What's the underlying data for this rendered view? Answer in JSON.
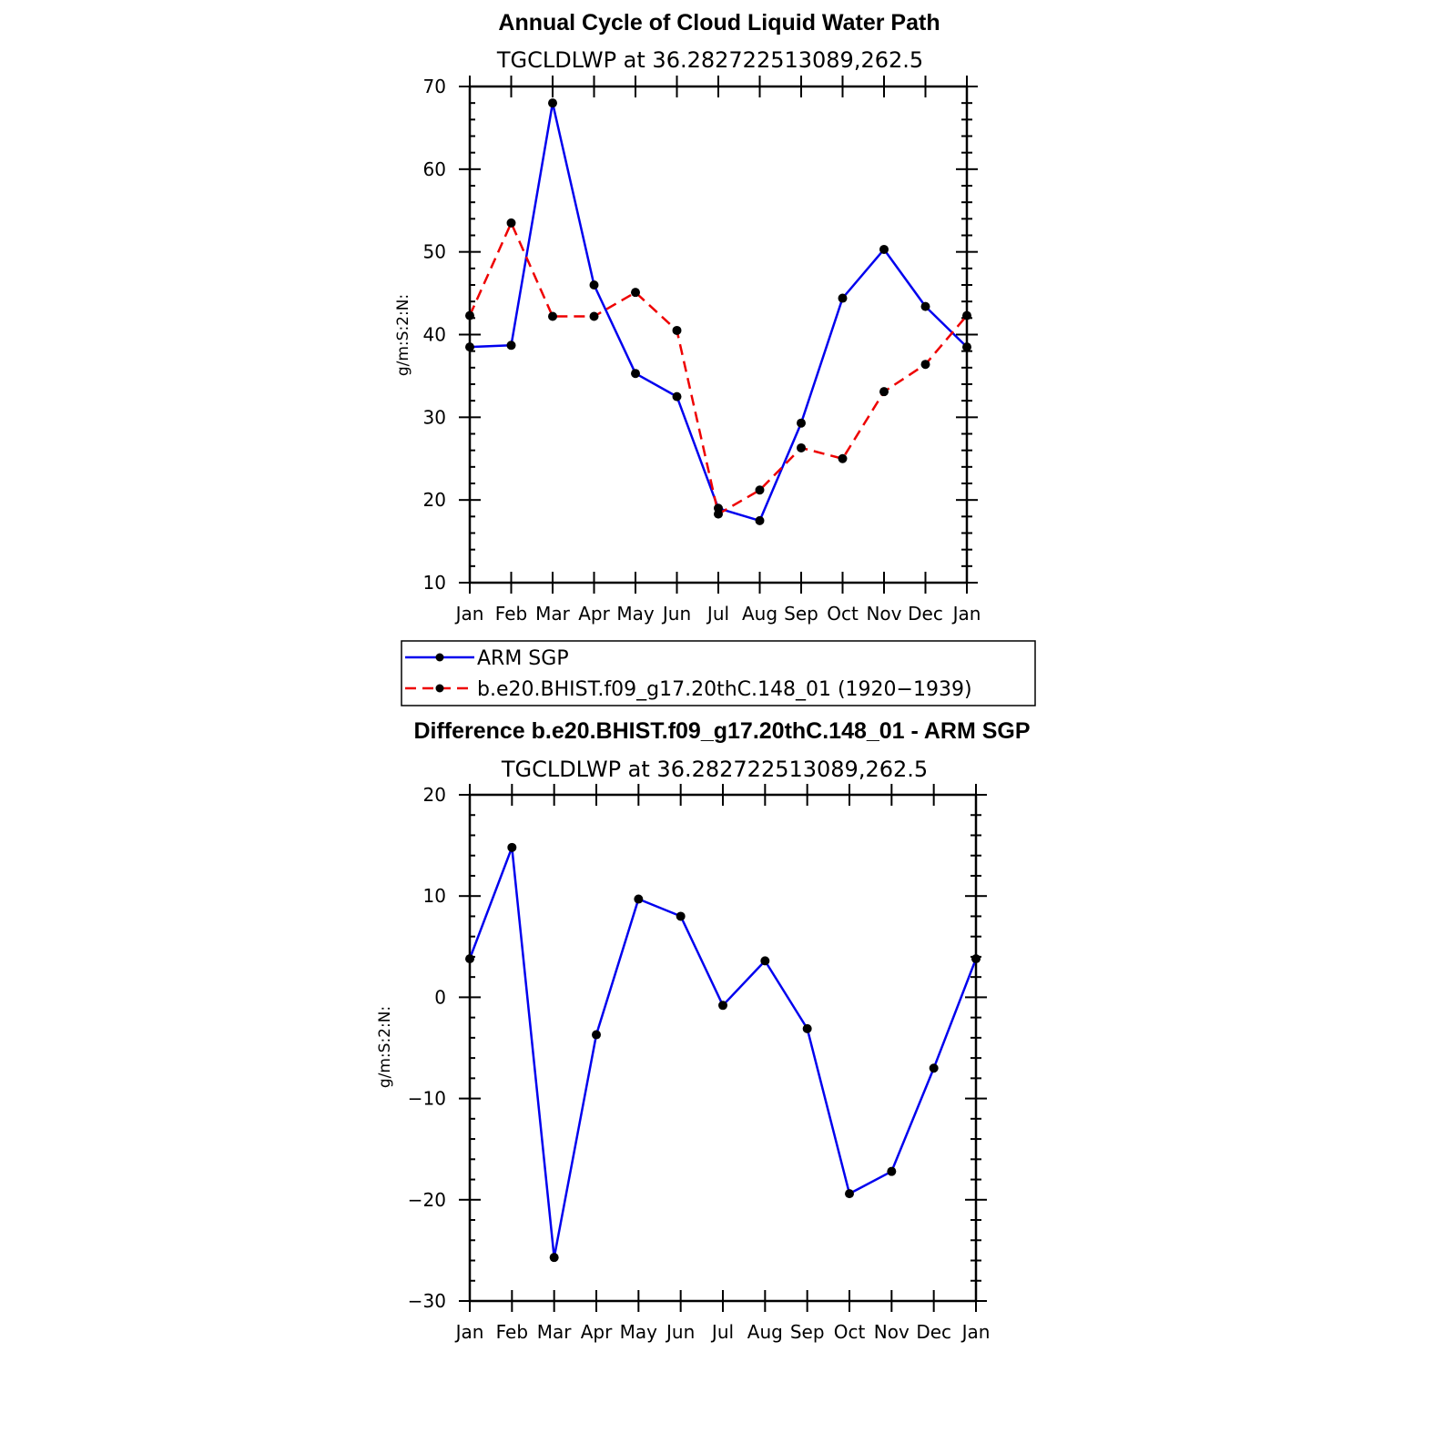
{
  "chart_data": [
    {
      "type": "line",
      "title": "Annual Cycle of Cloud Liquid Water Path",
      "subtitle": "TGCLDLWP at 36.282722513089,262.5",
      "ylabel": "g/m:S:2:N:",
      "ylim": [
        10,
        70
      ],
      "yticks": [
        10,
        20,
        30,
        40,
        50,
        60,
        70
      ],
      "categories": [
        "Jan",
        "Feb",
        "Mar",
        "Apr",
        "May",
        "Jun",
        "Jul",
        "Aug",
        "Sep",
        "Oct",
        "Nov",
        "Dec",
        "Jan"
      ],
      "series": [
        {
          "name": "ARM SGP",
          "color": "#0000ee",
          "dash": "solid",
          "values": [
            38.5,
            38.7,
            68.0,
            46.0,
            35.3,
            32.5,
            19.0,
            17.5,
            29.3,
            44.4,
            50.3,
            43.4,
            38.5
          ]
        },
        {
          "name": "b.e20.BHIST.f09_g17.20thC.148_01 (1920−1939)",
          "color": "#ee0000",
          "dash": "dashed",
          "values": [
            42.3,
            53.5,
            42.2,
            42.2,
            45.1,
            40.5,
            18.3,
            21.2,
            26.3,
            25.0,
            33.1,
            36.4,
            42.3
          ]
        }
      ],
      "legend": "below"
    },
    {
      "type": "line",
      "title": "Difference b.e20.BHIST.f09_g17.20thC.148_01 - ARM SGP",
      "subtitle": "TGCLDLWP at 36.282722513089,262.5",
      "ylabel": "g/m:S:2:N:",
      "ylim": [
        -30,
        20
      ],
      "yticks": [
        -30,
        -20,
        -10,
        0,
        10,
        20
      ],
      "ytick_labels": [
        "−30",
        "−20",
        "−10",
        "0",
        "10",
        "20"
      ],
      "categories": [
        "Jan",
        "Feb",
        "Mar",
        "Apr",
        "May",
        "Jun",
        "Jul",
        "Aug",
        "Sep",
        "Oct",
        "Nov",
        "Dec",
        "Jan"
      ],
      "series": [
        {
          "color": "#0000ee",
          "dash": "solid",
          "values": [
            3.8,
            14.8,
            -25.7,
            -3.7,
            9.7,
            8.0,
            -0.8,
            3.6,
            -3.1,
            -19.4,
            -17.2,
            -7.0,
            3.8
          ]
        }
      ]
    }
  ]
}
